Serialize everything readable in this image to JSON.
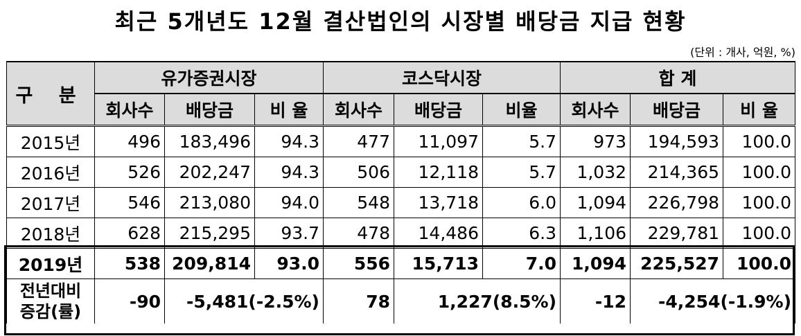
{
  "title": "최근 5개년도 12월 결산법인의 시장별 배당금 지급 현황",
  "unit": "(단위 : 개사, 억원, %)",
  "header": {
    "gubun": "구  분",
    "groups": [
      "유가증권시장",
      "코스닥시장",
      "합  계"
    ],
    "cols": [
      "회사수",
      "배당금",
      "비 율",
      "회사수",
      "배당금",
      "비율",
      "회사수",
      "배당금",
      "비 율"
    ]
  },
  "rows": [
    {
      "year": "2015년",
      "v": [
        "496",
        "183,496",
        "94.3",
        "477",
        "11,097",
        "5.7",
        "973",
        "194,593",
        "100.0"
      ]
    },
    {
      "year": "2016년",
      "v": [
        "526",
        "202,247",
        "94.3",
        "506",
        "12,118",
        "5.7",
        "1,032",
        "214,365",
        "100.0"
      ]
    },
    {
      "year": "2017년",
      "v": [
        "546",
        "213,080",
        "94.0",
        "548",
        "13,718",
        "6.0",
        "1,094",
        "226,798",
        "100.0"
      ]
    },
    {
      "year": "2018년",
      "v": [
        "628",
        "215,295",
        "93.7",
        "478",
        "14,486",
        "6.3",
        "1,106",
        "229,781",
        "100.0"
      ]
    },
    {
      "year": "2019년",
      "v": [
        "538",
        "209,814",
        "93.0",
        "556",
        "15,713",
        "7.0",
        "1,094",
        "225,527",
        "100.0"
      ]
    }
  ],
  "diff": {
    "label1": "전년대비",
    "label2": "증감(률)",
    "kospi_count": "-90",
    "kospi_amount": "-5,481(-2.5%)",
    "kosdaq_count": "78",
    "kosdaq_amount": "1,227(8.5%)",
    "total_count": "-12",
    "total_amount": "-4,254(-1.9%)"
  }
}
